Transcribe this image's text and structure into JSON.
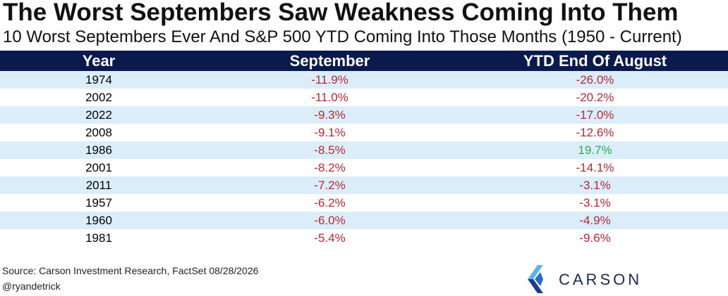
{
  "header": {
    "title": "The Worst Septembers Saw Weakness Coming Into Them",
    "subtitle": "10 Worst Septembers Ever And S&P 500 YTD Coming Into Those Months (1950 - Current)"
  },
  "table": {
    "columns": [
      "Year",
      "September",
      "YTD End Of August"
    ],
    "rows": [
      [
        "1974",
        "-11.9%",
        "-26.0%"
      ],
      [
        "2002",
        "-11.0%",
        "-20.2%"
      ],
      [
        "2022",
        "-9.3%",
        "-17.0%"
      ],
      [
        "2008",
        "-9.1%",
        "-12.6%"
      ],
      [
        "1986",
        "-8.5%",
        "19.7%"
      ],
      [
        "2001",
        "-8.2%",
        "-14.1%"
      ],
      [
        "2011",
        "-7.2%",
        "-3.1%"
      ],
      [
        "1957",
        "-6.2%",
        "-3.1%"
      ],
      [
        "1960",
        "-6.0%",
        "-4.9%"
      ],
      [
        "1981",
        "-5.4%",
        "-9.6%"
      ]
    ]
  },
  "footer": {
    "source": "Source: Carson Investment Research, FactSet 08/28/2026",
    "handle": "@ryandetrick"
  },
  "logo": {
    "text": "CARSON"
  }
}
